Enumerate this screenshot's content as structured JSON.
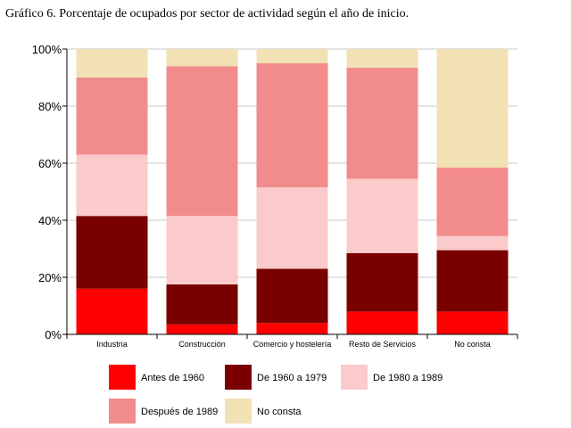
{
  "page": {
    "title": "Gráfico 6. Porcentaje de ocupados por sector de actividad según el año de inicio."
  },
  "chart_data": {
    "type": "bar",
    "stacked": true,
    "percent": true,
    "title": "Gráfico 6. Porcentaje de ocupados por sector de actividad según el año de inicio.",
    "xlabel": "",
    "ylabel": "",
    "ylim": [
      0,
      100
    ],
    "yticks": [
      "0%",
      "20%",
      "40%",
      "60%",
      "80%",
      "100%"
    ],
    "grid": "horizontal",
    "legend_position": "bottom",
    "categories": [
      "Industria",
      "Construcción",
      "Comercio y hostelería",
      "Resto de Servicios",
      "No consta"
    ],
    "series": [
      {
        "name": "Antes de 1960",
        "color": "#ff0000",
        "values": [
          16,
          3.5,
          4,
          8,
          8
        ]
      },
      {
        "name": "De 1960 a 1979",
        "color": "#7a0000",
        "values": [
          25.5,
          14,
          19,
          20.5,
          21.5
        ]
      },
      {
        "name": "De 1980 a 1989",
        "color": "#fbcaca",
        "values": [
          21.5,
          24,
          28.5,
          26,
          5
        ]
      },
      {
        "name": "Después de 1989",
        "color": "#f28c8c",
        "values": [
          27,
          52.5,
          43.5,
          39,
          24
        ]
      },
      {
        "name": "No consta",
        "color": "#f1e1b4",
        "values": [
          10,
          6,
          5,
          6.5,
          41.5
        ]
      }
    ]
  }
}
